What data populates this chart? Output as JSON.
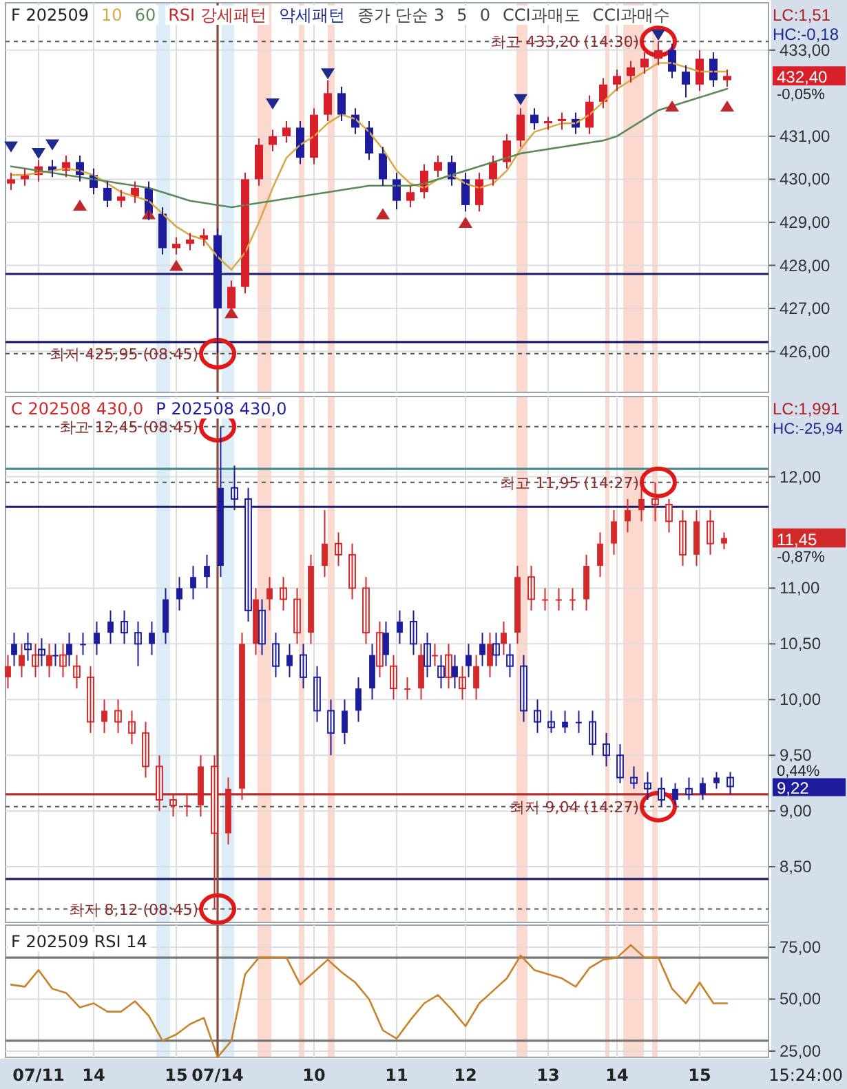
{
  "chart_data": [
    {
      "type": "candlestick",
      "title": "F 202509",
      "subtitle": "LC:1,51\nHC:-0,18",
      "annotations": [
        "종가 단순 3",
        "5",
        "0",
        "CCI과매도",
        "CCI과매수",
        {
          "text": "최고 433,20 (14:30)",
          "y": 433.2
        },
        {
          "text": "최저 425,95 (08:45)",
          "y": 425.95
        },
        "432,40",
        "-0,05%"
      ],
      "categories": [
        null,
        null,
        "07/11",
        null,
        null,
        null,
        "14",
        null,
        null,
        null,
        null,
        null,
        "15",
        null,
        null,
        "07/14",
        null,
        null,
        null,
        null,
        null,
        null,
        "10",
        null,
        null,
        null,
        null,
        null,
        "11",
        null,
        null,
        null,
        null,
        "12",
        null,
        null,
        null,
        null,
        null,
        "13",
        null,
        null,
        null,
        null,
        "14",
        null,
        null,
        null,
        null,
        null,
        "15",
        null,
        null
      ],
      "series": [
        {
          "ohlc": [
            [
              429.9,
              430.15,
              429.75,
              430.0
            ],
            [
              430.0,
              430.25,
              429.85,
              430.1
            ],
            [
              430.1,
              430.45,
              429.95,
              430.3
            ],
            [
              430.3,
              430.45,
              430.05,
              430.2
            ],
            [
              430.2,
              430.55,
              430.05,
              430.4
            ],
            [
              430.4,
              430.55,
              429.95,
              430.1
            ],
            [
              430.1,
              430.25,
              429.65,
              429.8
            ],
            [
              429.8,
              429.95,
              429.35,
              429.5
            ],
            [
              429.5,
              429.75,
              429.35,
              429.6
            ],
            [
              429.6,
              429.95,
              429.45,
              429.8
            ],
            [
              429.8,
              429.95,
              429.05,
              429.2
            ],
            [
              429.2,
              429.35,
              428.25,
              428.4
            ],
            [
              428.4,
              428.65,
              428.25,
              428.5
            ],
            [
              428.5,
              428.75,
              428.35,
              428.6
            ],
            [
              428.6,
              428.85,
              428.45,
              428.7
            ],
            [
              428.7,
              428.85,
              425.95,
              427.0
            ],
            [
              427.0,
              427.65,
              426.85,
              427.5
            ],
            [
              427.5,
              430.15,
              427.35,
              430.0
            ],
            [
              430.0,
              430.95,
              429.85,
              430.8
            ],
            [
              430.8,
              431.15,
              430.65,
              431.0
            ],
            [
              431.0,
              431.35,
              430.85,
              431.2
            ],
            [
              431.2,
              431.35,
              430.35,
              430.5
            ],
            [
              430.5,
              431.65,
              430.35,
              431.5
            ],
            [
              431.5,
              432.3,
              431.35,
              432.0
            ],
            [
              432.0,
              432.15,
              431.35,
              431.5
            ],
            [
              431.5,
              431.65,
              431.05,
              431.2
            ],
            [
              431.2,
              431.35,
              430.45,
              430.6
            ],
            [
              430.6,
              430.75,
              429.85,
              430.0
            ],
            [
              430.0,
              430.15,
              429.3,
              429.5
            ],
            [
              429.5,
              429.85,
              429.35,
              429.7
            ],
            [
              429.7,
              430.35,
              429.55,
              430.2
            ],
            [
              430.2,
              430.55,
              430.05,
              430.4
            ],
            [
              430.4,
              430.55,
              429.85,
              430.0
            ],
            [
              430.0,
              430.15,
              429.25,
              429.4
            ],
            [
              429.4,
              430.15,
              429.25,
              430.0
            ],
            [
              430.0,
              430.55,
              429.85,
              430.4
            ],
            [
              430.4,
              431.05,
              430.25,
              430.9
            ],
            [
              430.9,
              431.65,
              430.75,
              431.5
            ],
            [
              431.5,
              431.65,
              431.15,
              431.3
            ],
            [
              431.3,
              431.45,
              431.15,
              431.35
            ],
            [
              431.35,
              431.55,
              431.15,
              431.4
            ],
            [
              431.4,
              431.55,
              431.05,
              431.2
            ],
            [
              431.2,
              431.95,
              431.05,
              431.8
            ],
            [
              431.8,
              432.35,
              431.65,
              432.2
            ],
            [
              432.2,
              432.55,
              432.05,
              432.4
            ],
            [
              432.4,
              432.75,
              432.25,
              432.6
            ],
            [
              432.6,
              432.95,
              432.45,
              432.8
            ],
            [
              432.8,
              433.2,
              432.65,
              433.0
            ],
            [
              433.0,
              433.15,
              432.35,
              432.5
            ],
            [
              432.5,
              432.65,
              431.9,
              432.2
            ],
            [
              432.2,
              433.0,
              432.05,
              432.8
            ],
            [
              432.8,
              432.95,
              432.15,
              432.3
            ],
            [
              432.3,
              432.55,
              432.15,
              432.4
            ]
          ],
          "colors": [
            "#d8202a",
            "#d8202a",
            "#d8202a",
            "#1c1c9c",
            "#d8202a",
            "#1c1c9c",
            "#1c1c9c",
            "#1c1c9c",
            "#d8202a",
            "#d8202a",
            "#1c1c9c",
            "#1c1c9c",
            "#d8202a",
            "#d8202a",
            "#d8202a",
            "#1c1c9c",
            "#d8202a",
            "#d8202a",
            "#d8202a",
            "#d8202a",
            "#d8202a",
            "#1c1c9c",
            "#d8202a",
            "#d8202a",
            "#1c1c9c",
            "#1c1c9c",
            "#1c1c9c",
            "#1c1c9c",
            "#1c1c9c",
            "#d8202a",
            "#d8202a",
            "#d8202a",
            "#1c1c9c",
            "#1c1c9c",
            "#d8202a",
            "#d8202a",
            "#d8202a",
            "#d8202a",
            "#1c1c9c",
            "#d8202a",
            "#d8202a",
            "#1c1c9c",
            "#d8202a",
            "#d8202a",
            "#d8202a",
            "#d8202a",
            "#d8202a",
            "#d8202a",
            "#1c1c9c",
            "#1c1c9c",
            "#d8202a",
            "#1c1c9c",
            "#d8202a"
          ]
        },
        {
          "type": "line",
          "name": "10",
          "color": "#d9a848",
          "values": [
            430.1,
            430.1,
            430.15,
            430.2,
            430.25,
            430.2,
            430.1,
            429.9,
            429.7,
            429.6,
            429.5,
            429.2,
            428.9,
            428.7,
            428.6,
            428.2,
            427.9,
            428.3,
            429.0,
            429.8,
            430.5,
            430.8,
            431.0,
            431.3,
            431.5,
            431.4,
            431.1,
            430.7,
            430.2,
            429.9,
            429.8,
            430.0,
            430.1,
            429.9,
            429.8,
            429.9,
            430.2,
            430.7,
            431.1,
            431.2,
            431.3,
            431.3,
            431.5,
            431.8,
            432.1,
            432.3,
            432.5,
            432.7,
            432.7,
            432.6,
            432.5,
            432.5,
            432.5
          ]
        },
        {
          "type": "line",
          "name": "60",
          "color": "#5a8a5a",
          "values": [
            430.3,
            430.25,
            430.2,
            430.15,
            430.1,
            430.05,
            430.0,
            429.95,
            429.9,
            429.85,
            429.8,
            429.7,
            429.6,
            429.5,
            429.45,
            429.4,
            429.35,
            429.4,
            429.45,
            429.5,
            429.55,
            429.6,
            429.65,
            429.7,
            429.75,
            429.8,
            429.85,
            429.85,
            429.85,
            429.85,
            429.9,
            430.0,
            430.1,
            430.2,
            430.3,
            430.4,
            430.5,
            430.6,
            430.65,
            430.7,
            430.75,
            430.8,
            430.85,
            430.9,
            431.0,
            431.2,
            431.4,
            431.6,
            431.7,
            431.8,
            431.9,
            432.0,
            432.1
          ]
        },
        {
          "type": "scatter",
          "name": "RSI 강세패턴",
          "color": "#c0282c",
          "marker": "triangle",
          "values": [
            null,
            null,
            null,
            null,
            null,
            429.4,
            null,
            null,
            null,
            null,
            429.2,
            null,
            428.0,
            null,
            null,
            null,
            426.9,
            null,
            null,
            null,
            null,
            null,
            null,
            null,
            null,
            null,
            null,
            429.2,
            null,
            null,
            null,
            null,
            null,
            429.0,
            null,
            null,
            null,
            null,
            null,
            null,
            null,
            null,
            null,
            null,
            null,
            null,
            null,
            null,
            431.7,
            null,
            null,
            null,
            431.7
          ]
        },
        {
          "type": "scatter",
          "name": "약세패턴",
          "color": "#1c2c8c",
          "marker": "triangle",
          "values": [
            430.75,
            null,
            430.6,
            430.8,
            null,
            null,
            null,
            null,
            null,
            null,
            null,
            null,
            null,
            null,
            null,
            null,
            null,
            null,
            null,
            431.75,
            null,
            null,
            null,
            432.45,
            null,
            null,
            null,
            null,
            null,
            null,
            null,
            null,
            null,
            null,
            null,
            null,
            null,
            431.85,
            null,
            null,
            null,
            null,
            null,
            null,
            null,
            null,
            null,
            433.35,
            null,
            null,
            null,
            null,
            null
          ]
        }
      ],
      "ylim": [
        425.05,
        434.1
      ],
      "yticks": [
        {
          "value": 426,
          "label": "426,00"
        },
        {
          "value": 427,
          "label": "427,00"
        },
        {
          "value": 428,
          "label": "428,00"
        },
        {
          "value": 429,
          "label": "429,00"
        },
        {
          "value": 430,
          "label": "430,00"
        },
        {
          "value": 431,
          "label": "431,00"
        },
        {
          "value": 433,
          "label": "433,00"
        }
      ],
      "tick_labels": "y",
      "grid": true,
      "ref_lines": [
        {
          "axis": "y",
          "value": 427.8,
          "color": "#1c1c6c"
        },
        {
          "axis": "y",
          "value": 426.22,
          "color": "#1c1c6c"
        },
        {
          "axis": "y",
          "value": 433.2,
          "color": "#555555",
          "line_style": "dashed"
        },
        {
          "axis": "y",
          "value": 425.95,
          "color": "#555555",
          "line_style": "dashed"
        },
        {
          "axis": "x",
          "value": "07/14",
          "color": "#8b4a3a"
        }
      ]
    },
    {
      "type": "candlestick",
      "subtitle": "LC:1,991\nHC:-25,94",
      "annotations": [
        {
          "text": "최고 12,45 (08:45)",
          "y": 12.45
        },
        {
          "text": "최고 11,95 (14:27)",
          "y": 11.95
        },
        {
          "text": "최저 9,04 (14:27)",
          "y": 9.04
        },
        {
          "text": "최저 8,12 (08:45)",
          "y": 8.12
        },
        "11,45",
        "-0,87%",
        "9,22",
        "0,44%"
      ],
      "categories": [
        null,
        null,
        "07/11",
        null,
        null,
        null,
        "14",
        null,
        null,
        null,
        null,
        null,
        "15",
        null,
        null,
        "07/14",
        null,
        null,
        null,
        null,
        null,
        null,
        "10",
        null,
        null,
        null,
        null,
        null,
        "11",
        null,
        null,
        null,
        null,
        "12",
        null,
        null,
        null,
        null,
        null,
        "13",
        null,
        null,
        null,
        null,
        "14",
        null,
        null,
        null,
        null,
        null,
        "15",
        null,
        null
      ],
      "series": [
        {
          "name": "C 202508 430,0",
          "color": "#d22a2a",
          "ohlc": [
            [
              10.2,
              10.4,
              10.1,
              10.3
            ],
            [
              10.3,
              10.5,
              10.2,
              10.4
            ],
            [
              10.4,
              10.5,
              10.2,
              10.3
            ],
            [
              10.3,
              10.5,
              10.2,
              10.4
            ],
            [
              10.4,
              10.5,
              10.2,
              10.3
            ],
            [
              10.3,
              10.4,
              10.1,
              10.2
            ],
            [
              10.2,
              10.3,
              9.7,
              9.8
            ],
            [
              9.8,
              10.0,
              9.7,
              9.9
            ],
            [
              9.9,
              10.0,
              9.7,
              9.8
            ],
            [
              9.8,
              9.9,
              9.6,
              9.7
            ],
            [
              9.7,
              9.8,
              9.3,
              9.4
            ],
            [
              9.4,
              9.5,
              9.0,
              9.1
            ],
            [
              9.1,
              9.15,
              8.95,
              9.05
            ],
            [
              9.05,
              9.15,
              8.95,
              9.05
            ],
            [
              9.05,
              9.5,
              8.95,
              9.4
            ],
            [
              9.4,
              9.5,
              8.12,
              8.8
            ],
            [
              8.8,
              9.3,
              8.7,
              9.2
            ],
            [
              9.2,
              10.6,
              9.1,
              10.5
            ],
            [
              10.5,
              11.0,
              10.4,
              10.9
            ],
            [
              10.9,
              11.1,
              10.8,
              11.0
            ],
            [
              11.0,
              11.1,
              10.8,
              10.9
            ],
            [
              10.9,
              11.0,
              10.5,
              10.6
            ],
            [
              10.6,
              11.3,
              10.5,
              11.2
            ],
            [
              11.2,
              11.7,
              11.1,
              11.4
            ],
            [
              11.4,
              11.5,
              11.2,
              11.3
            ],
            [
              11.3,
              11.4,
              10.9,
              11.0
            ],
            [
              11.0,
              11.1,
              10.5,
              10.6
            ],
            [
              10.6,
              10.7,
              10.2,
              10.3
            ],
            [
              10.3,
              10.4,
              10.0,
              10.1
            ],
            [
              10.1,
              10.2,
              10.0,
              10.1
            ],
            [
              10.1,
              10.5,
              10.0,
              10.4
            ],
            [
              10.4,
              10.5,
              10.3,
              10.4
            ],
            [
              10.4,
              10.5,
              10.1,
              10.2
            ],
            [
              10.2,
              10.3,
              10.0,
              10.1
            ],
            [
              10.1,
              10.4,
              10.0,
              10.3
            ],
            [
              10.3,
              10.6,
              10.2,
              10.5
            ],
            [
              10.5,
              10.7,
              10.4,
              10.6
            ],
            [
              10.6,
              11.2,
              10.5,
              11.1
            ],
            [
              11.1,
              11.2,
              10.8,
              10.9
            ],
            [
              10.9,
              11.0,
              10.8,
              10.9
            ],
            [
              10.9,
              11.0,
              10.8,
              10.9
            ],
            [
              10.9,
              11.0,
              10.8,
              10.9
            ],
            [
              10.9,
              11.3,
              10.8,
              11.2
            ],
            [
              11.2,
              11.5,
              11.1,
              11.4
            ],
            [
              11.4,
              11.7,
              11.3,
              11.6
            ],
            [
              11.6,
              11.8,
              11.5,
              11.7
            ],
            [
              11.7,
              11.9,
              11.6,
              11.8
            ],
            [
              11.8,
              11.95,
              11.6,
              11.75
            ],
            [
              11.75,
              11.8,
              11.5,
              11.6
            ],
            [
              11.6,
              11.7,
              11.2,
              11.3
            ],
            [
              11.3,
              11.7,
              11.2,
              11.6
            ],
            [
              11.6,
              11.7,
              11.3,
              11.4
            ],
            [
              11.4,
              11.5,
              11.35,
              11.45
            ]
          ]
        },
        {
          "name": "P 202508 430,0",
          "color": "#1c1c9c",
          "ohlc": [
            [
              10.4,
              10.6,
              10.3,
              10.5
            ],
            [
              10.5,
              10.6,
              10.35,
              10.45
            ],
            [
              10.45,
              10.55,
              10.3,
              10.4
            ],
            [
              10.4,
              10.5,
              10.3,
              10.4
            ],
            [
              10.4,
              10.6,
              10.3,
              10.5
            ],
            [
              10.5,
              10.6,
              10.4,
              10.5
            ],
            [
              10.5,
              10.7,
              10.4,
              10.6
            ],
            [
              10.6,
              10.8,
              10.5,
              10.7
            ],
            [
              10.7,
              10.8,
              10.5,
              10.6
            ],
            [
              10.6,
              10.7,
              10.3,
              10.5
            ],
            [
              10.5,
              10.7,
              10.4,
              10.6
            ],
            [
              10.6,
              11.0,
              10.5,
              10.9
            ],
            [
              10.9,
              11.1,
              10.8,
              11.0
            ],
            [
              11.0,
              11.2,
              10.9,
              11.1
            ],
            [
              11.1,
              11.3,
              11.0,
              11.2
            ],
            [
              11.2,
              12.45,
              11.1,
              11.9
            ],
            [
              11.9,
              12.1,
              11.7,
              11.8
            ],
            [
              11.8,
              11.9,
              10.7,
              10.8
            ],
            [
              10.8,
              10.9,
              10.4,
              10.5
            ],
            [
              10.5,
              10.6,
              10.2,
              10.3
            ],
            [
              10.3,
              10.5,
              10.2,
              10.4
            ],
            [
              10.4,
              10.5,
              10.1,
              10.2
            ],
            [
              10.2,
              10.3,
              9.8,
              9.9
            ],
            [
              9.9,
              10.0,
              9.5,
              9.7
            ],
            [
              9.7,
              10.0,
              9.6,
              9.9
            ],
            [
              9.9,
              10.2,
              9.8,
              10.1
            ],
            [
              10.1,
              10.5,
              10.0,
              10.4
            ],
            [
              10.4,
              10.7,
              10.3,
              10.6
            ],
            [
              10.6,
              10.8,
              10.5,
              10.7
            ],
            [
              10.7,
              10.8,
              10.4,
              10.5
            ],
            [
              10.5,
              10.6,
              10.2,
              10.3
            ],
            [
              10.3,
              10.4,
              10.1,
              10.2
            ],
            [
              10.2,
              10.4,
              10.1,
              10.3
            ],
            [
              10.3,
              10.5,
              10.2,
              10.4
            ],
            [
              10.4,
              10.6,
              10.3,
              10.5
            ],
            [
              10.5,
              10.6,
              10.3,
              10.4
            ],
            [
              10.4,
              10.5,
              10.2,
              10.3
            ],
            [
              10.3,
              10.4,
              9.8,
              9.9
            ],
            [
              9.9,
              10.0,
              9.7,
              9.8
            ],
            [
              9.8,
              9.9,
              9.7,
              9.75
            ],
            [
              9.75,
              9.9,
              9.7,
              9.8
            ],
            [
              9.8,
              9.9,
              9.7,
              9.8
            ],
            [
              9.8,
              9.9,
              9.5,
              9.6
            ],
            [
              9.6,
              9.7,
              9.4,
              9.5
            ],
            [
              9.5,
              9.6,
              9.25,
              9.3
            ],
            [
              9.3,
              9.4,
              9.2,
              9.25
            ],
            [
              9.25,
              9.35,
              9.1,
              9.2
            ],
            [
              9.2,
              9.3,
              9.04,
              9.1
            ],
            [
              9.1,
              9.25,
              9.05,
              9.2
            ],
            [
              9.2,
              9.3,
              9.1,
              9.15
            ],
            [
              9.15,
              9.3,
              9.1,
              9.25
            ],
            [
              9.25,
              9.35,
              9.2,
              9.3
            ],
            [
              9.3,
              9.35,
              9.15,
              9.22
            ]
          ]
        }
      ],
      "ylim": [
        8.0,
        12.72
      ],
      "yticks": [
        {
          "value": 8.5,
          "label": "8,50"
        },
        {
          "value": 9,
          "label": "9,00"
        },
        {
          "value": 9.5,
          "label": "9,50"
        },
        {
          "value": 10,
          "label": "10,00"
        },
        {
          "value": 10.5,
          "label": "10,50"
        },
        {
          "value": 11,
          "label": "11,00"
        },
        {
          "value": 12,
          "label": "12,00"
        }
      ],
      "tick_labels": "y",
      "grid": true,
      "ref_lines": [
        {
          "axis": "y",
          "value": 12.07,
          "color": "#4a8a8a"
        },
        {
          "axis": "y",
          "value": 11.73,
          "color": "#1c1c6c"
        },
        {
          "axis": "y",
          "value": 9.15,
          "color": "#b03030"
        },
        {
          "axis": "y",
          "value": 8.39,
          "color": "#1c1c6c"
        },
        {
          "axis": "y",
          "value": 12.45,
          "color": "#555555",
          "line_style": "dashed"
        },
        {
          "axis": "y",
          "value": 11.95,
          "color": "#555555",
          "line_style": "dashed"
        },
        {
          "axis": "y",
          "value": 9.04,
          "color": "#555555",
          "line_style": "dashed"
        },
        {
          "axis": "y",
          "value": 8.12,
          "color": "#555555",
          "line_style": "dashed"
        },
        {
          "axis": "x",
          "value": "07/14",
          "color": "#8b4a3a"
        }
      ]
    },
    {
      "type": "line",
      "title": "F 202509 RSI 14",
      "xlabel": "15:24:00",
      "categories": [
        null,
        null,
        "07/11",
        null,
        null,
        null,
        "14",
        null,
        null,
        null,
        null,
        null,
        "15",
        null,
        null,
        "07/14",
        null,
        null,
        null,
        null,
        null,
        null,
        "10",
        null,
        null,
        null,
        null,
        null,
        "11",
        null,
        null,
        null,
        null,
        "12",
        null,
        null,
        null,
        null,
        null,
        "13",
        null,
        null,
        null,
        null,
        "14",
        null,
        null,
        null,
        null,
        null,
        "15",
        null,
        null
      ],
      "series": [
        {
          "color": "#c8822a",
          "values": [
            57,
            56,
            64,
            55,
            53,
            46,
            48,
            44,
            44,
            49,
            42,
            30,
            33,
            38,
            41,
            22,
            30,
            62,
            70,
            70,
            70,
            57,
            63,
            69,
            63,
            58,
            50,
            35,
            31,
            40,
            48,
            52,
            45,
            37,
            48,
            54,
            60,
            71,
            64,
            62,
            60,
            56,
            65,
            69,
            70,
            76,
            70,
            70,
            55,
            48,
            58,
            48,
            48
          ]
        }
      ],
      "ylim": [
        22,
        85.6
      ],
      "yticks": [
        {
          "value": 25,
          "label": "25,00"
        },
        {
          "value": 50,
          "label": "50,00"
        },
        {
          "value": 75,
          "label": "75,00"
        }
      ],
      "grid": true,
      "ref_lines": [
        {
          "axis": "y",
          "value": 70,
          "color": "#777777"
        },
        {
          "axis": "y",
          "value": 30,
          "color": "#777777"
        },
        {
          "axis": "x",
          "value": "07/14",
          "color": "#8b4a3a"
        }
      ]
    }
  ]
}
